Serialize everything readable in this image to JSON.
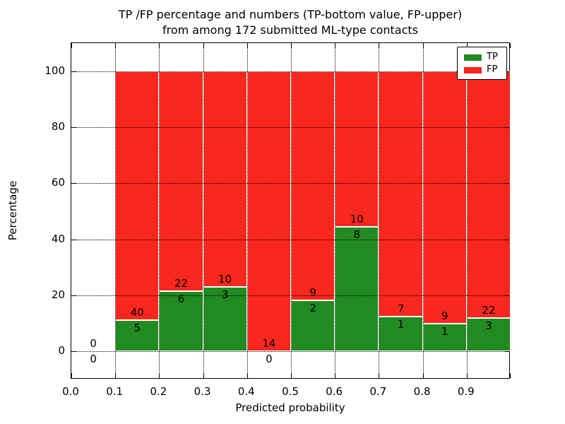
{
  "title_line1": "TP /FP percentage and numbers (TP-bottom value, FP-upper)",
  "title_line2": "from among 172 submitted ML-type contacts",
  "axes": {
    "xlabel": "Predicted probability",
    "ylabel": "Percentage",
    "x_tick_labels": [
      "0.0",
      "0.1",
      "0.2",
      "0.3",
      "0.4",
      "0.5",
      "0.6",
      "0.7",
      "0.8",
      "0.9"
    ],
    "y_tick_labels": [
      "0",
      "20",
      "40",
      "60",
      "80",
      "100"
    ]
  },
  "legend": {
    "items": [
      {
        "label": "TP",
        "color": "#218a21"
      },
      {
        "label": "FP",
        "color": "#f9271d"
      }
    ]
  },
  "colors": {
    "tp_green": "#218a21",
    "fp_red": "#f9271d",
    "axis": "#000000",
    "background": "#ffffff"
  },
  "chart_data": {
    "type": "bar",
    "stacked": true,
    "title": "TP /FP percentage and numbers (TP-bottom value, FP-upper) from among 172 submitted ML-type contacts",
    "xlabel": "Predicted probability",
    "ylabel": "Percentage",
    "xlim": [
      0.0,
      1.0
    ],
    "ylim": [
      -10,
      110
    ],
    "grid": true,
    "legend_position": "upper right",
    "total_contacts": 172,
    "bin_width": 0.1,
    "categories": [
      "0.0-0.1",
      "0.1-0.2",
      "0.2-0.3",
      "0.3-0.4",
      "0.4-0.5",
      "0.5-0.6",
      "0.6-0.7",
      "0.7-0.8",
      "0.8-0.9",
      "0.9-1.0"
    ],
    "bar_count_labels_note": "TP count printed just below green/red boundary, FP count just above it",
    "series": [
      {
        "name": "TP",
        "color": "#218a21",
        "counts": [
          0,
          5,
          6,
          3,
          0,
          2,
          8,
          1,
          1,
          3
        ],
        "pct": [
          0,
          11.11,
          21.43,
          23.08,
          0,
          18.18,
          44.44,
          12.5,
          10.0,
          12.0
        ]
      },
      {
        "name": "FP",
        "color": "#f9271d",
        "counts": [
          0,
          40,
          22,
          10,
          14,
          9,
          10,
          7,
          9,
          22
        ],
        "pct": [
          0,
          88.89,
          78.57,
          76.92,
          100.0,
          81.82,
          55.56,
          87.5,
          90.0,
          88.0
        ]
      }
    ]
  }
}
